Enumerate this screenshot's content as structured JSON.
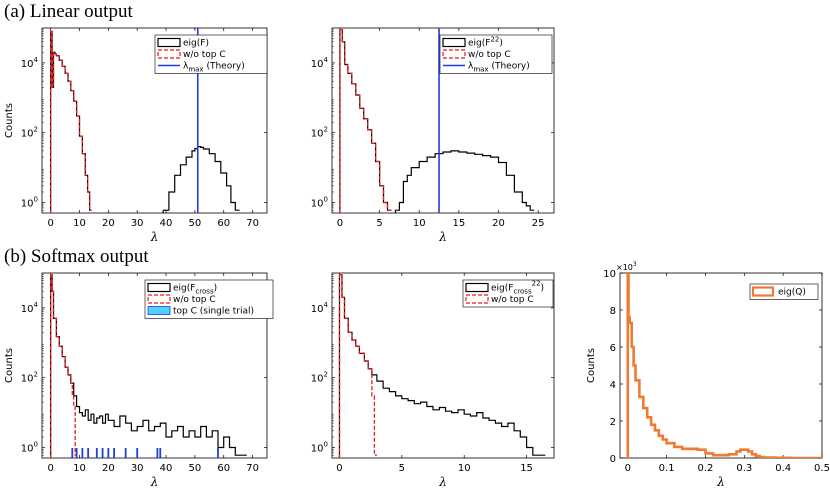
{
  "sections": {
    "a_title": "(a) Linear output",
    "b_title": "(b) Softmax output"
  },
  "colors": {
    "hist": "#000000",
    "red": "#e41a1c",
    "blue": "#1f3fd9",
    "cyan": "#4fd2ff",
    "orange": "#f07a32"
  },
  "chart_data": [
    {
      "id": "linear-eigF",
      "type": "histogram",
      "xlabel": "λ",
      "ylabel": "Counts",
      "yscale": "log",
      "xlim": [
        -3,
        75
      ],
      "ylim": [
        0.5,
        100000
      ],
      "xticks": [
        0,
        10,
        20,
        30,
        40,
        50,
        60,
        70
      ],
      "yticks": [
        {
          "v": 1,
          "base": "10",
          "exp": "0"
        },
        {
          "v": 100,
          "base": "10",
          "exp": "2"
        },
        {
          "v": 10000,
          "base": "10",
          "exp": "4"
        }
      ],
      "legend": [
        {
          "style": "box-black",
          "base": "eig(F)",
          "sub": "",
          "sup": "",
          "tail": ""
        },
        {
          "style": "dash-red",
          "base": "w/o top C",
          "sub": "",
          "sup": "",
          "tail": ""
        },
        {
          "style": "line-blue",
          "base": "λ",
          "sub": "max",
          "sup": "",
          "tail": " (Theory)"
        }
      ],
      "series": [
        {
          "name": "eig(F)",
          "style": "black",
          "x": [
            0,
            0.5,
            1,
            1.5,
            2,
            3,
            4,
            5,
            6,
            7,
            8,
            9,
            10,
            11,
            12,
            12.8,
            13.5
          ],
          "y": [
            80000,
            2000,
            20000,
            18000,
            16000,
            12000,
            8000,
            5000,
            3000,
            1600,
            800,
            300,
            80,
            25,
            6,
            2,
            0.6
          ]
        },
        {
          "name": "w/o top C",
          "style": "red-dash",
          "x": [
            0,
            0.5,
            1,
            1.5,
            2,
            3,
            4,
            5,
            6,
            7,
            8,
            9,
            10,
            11,
            12,
            12.8,
            13.5
          ],
          "y": [
            80000,
            2000,
            20000,
            18000,
            16000,
            12000,
            8000,
            5000,
            3000,
            1600,
            800,
            300,
            80,
            25,
            6,
            2,
            0.6
          ]
        },
        {
          "name": "eig(F) outliers",
          "style": "black",
          "x": [
            39,
            41,
            43,
            45,
            47,
            49,
            50,
            51,
            52,
            53,
            55,
            57,
            59,
            61,
            62.5,
            64
          ],
          "y": [
            0.6,
            2,
            6,
            12,
            20,
            30,
            35,
            40,
            38,
            34,
            25,
            15,
            7,
            3,
            1,
            0.6
          ]
        }
      ],
      "vline": {
        "x": 51,
        "style": "blue"
      }
    },
    {
      "id": "linear-eigF22",
      "type": "histogram",
      "xlabel": "λ",
      "ylabel": "",
      "yscale": "log",
      "xlim": [
        -1,
        27
      ],
      "ylim": [
        0.5,
        100000
      ],
      "xticks": [
        0,
        5,
        10,
        15,
        20,
        25
      ],
      "yticks": [
        {
          "v": 1,
          "base": "10",
          "exp": "0"
        },
        {
          "v": 100,
          "base": "10",
          "exp": "2"
        },
        {
          "v": 10000,
          "base": "10",
          "exp": "4"
        }
      ],
      "legend": [
        {
          "style": "box-black",
          "base": "eig(F",
          "sub": "",
          "sup": "22",
          "tail": ")"
        },
        {
          "style": "dash-red",
          "base": "w/o top C",
          "sub": "",
          "sup": "",
          "tail": ""
        },
        {
          "style": "line-blue",
          "base": "λ",
          "sub": "max",
          "sup": "",
          "tail": " (Theory)"
        }
      ],
      "series": [
        {
          "name": "eig(F^22)",
          "style": "black",
          "x": [
            0,
            0.3,
            0.6,
            1,
            1.5,
            2,
            2.5,
            3,
            3.5,
            4,
            4.5,
            5,
            5.5,
            6
          ],
          "y": [
            90000,
            40000,
            9000,
            5000,
            2500,
            1200,
            500,
            250,
            120,
            50,
            15,
            3,
            1,
            0.6
          ]
        },
        {
          "name": "w/o top C",
          "style": "red-dash",
          "x": [
            0,
            0.3,
            0.6,
            1,
            1.5,
            2,
            2.5,
            3,
            3.5,
            4,
            4.5,
            5,
            5.5,
            6
          ],
          "y": [
            90000,
            40000,
            9000,
            5000,
            2500,
            1200,
            500,
            250,
            120,
            50,
            15,
            3,
            1,
            0.6
          ]
        },
        {
          "name": "eig(F^22) outliers",
          "style": "black",
          "x": [
            7,
            7.5,
            8,
            8.5,
            9,
            10,
            11,
            12,
            13,
            14,
            15,
            16,
            17,
            18,
            19,
            20,
            21,
            22,
            23,
            23.5,
            24
          ],
          "y": [
            0.6,
            1,
            4,
            6,
            10,
            15,
            20,
            25,
            28,
            30,
            28,
            26,
            24,
            22,
            20,
            14,
            6,
            2,
            1,
            0.8,
            0.6
          ]
        }
      ],
      "vline": {
        "x": 12.5,
        "style": "blue"
      }
    },
    {
      "id": "softmax-eigFcross",
      "type": "histogram",
      "xlabel": "λ",
      "ylabel": "Counts",
      "yscale": "log",
      "xlim": [
        -3,
        75
      ],
      "ylim": [
        0.5,
        100000
      ],
      "xticks": [
        0,
        10,
        20,
        30,
        40,
        50,
        60,
        70
      ],
      "yticks": [
        {
          "v": 1,
          "base": "10",
          "exp": "0"
        },
        {
          "v": 100,
          "base": "10",
          "exp": "2"
        },
        {
          "v": 10000,
          "base": "10",
          "exp": "4"
        }
      ],
      "legend": [
        {
          "style": "box-black",
          "base": "eig(F",
          "sub": "cross",
          "sup": "",
          "tail": ")"
        },
        {
          "style": "dash-red",
          "base": "w/o top C",
          "sub": "",
          "sup": "",
          "tail": ""
        },
        {
          "style": "box-cyan",
          "base": "top C (single trial)",
          "sub": "",
          "sup": "",
          "tail": ""
        }
      ],
      "series": [
        {
          "name": "eig(F_cross)",
          "style": "black",
          "x": [
            0,
            0.5,
            1,
            2,
            3,
            4,
            5,
            6,
            7,
            8,
            9,
            10,
            11,
            12,
            13,
            14,
            15,
            16,
            17,
            18,
            19,
            20,
            22,
            24,
            26,
            28,
            30,
            32,
            34,
            36,
            38,
            40,
            42,
            44,
            46,
            48,
            50,
            52,
            54,
            56,
            58,
            60,
            62,
            64,
            66
          ],
          "y": [
            90000,
            30000,
            5000,
            1500,
            800,
            400,
            200,
            120,
            70,
            30,
            15,
            10,
            8,
            12,
            6,
            9,
            5,
            7,
            8,
            5,
            9,
            6,
            4,
            8,
            5,
            3,
            4,
            6,
            3,
            4,
            5,
            2,
            3,
            4,
            2,
            3,
            2,
            4,
            2,
            3,
            1,
            2,
            1,
            0.6,
            0.6
          ]
        },
        {
          "name": "w/o top C",
          "style": "red-dash",
          "x": [
            0,
            0.5,
            1,
            2,
            3,
            4,
            5,
            6,
            7,
            7.5,
            8,
            8.5
          ],
          "y": [
            90000,
            30000,
            5000,
            1500,
            800,
            400,
            200,
            120,
            70,
            30,
            15,
            0.6
          ]
        }
      ],
      "rug": {
        "style": "blue",
        "x": [
          7.5,
          9,
          11,
          13,
          16,
          18,
          20,
          22,
          26,
          30,
          37,
          38,
          58
        ]
      }
    },
    {
      "id": "softmax-eigF22cross",
      "type": "histogram",
      "xlabel": "λ",
      "ylabel": "",
      "yscale": "log",
      "xlim": [
        -0.6,
        17.2
      ],
      "ylim": [
        0.5,
        100000
      ],
      "xticks": [
        0,
        5,
        10,
        15
      ],
      "yticks": [
        {
          "v": 1,
          "base": "10",
          "exp": "0"
        },
        {
          "v": 100,
          "base": "10",
          "exp": "2"
        },
        {
          "v": 10000,
          "base": "10",
          "exp": "4"
        }
      ],
      "legend": [
        {
          "style": "box-black",
          "base": "eig(F",
          "sub": "cross",
          "sup": "22",
          "tail": ")"
        },
        {
          "style": "dash-red",
          "base": "w/o top C",
          "sub": "",
          "sup": "",
          "tail": ""
        }
      ],
      "series": [
        {
          "name": "eig(F^22_cross)",
          "style": "black",
          "x": [
            0,
            0.2,
            0.4,
            0.7,
            1,
            1.3,
            1.6,
            2,
            2.3,
            2.6,
            3,
            3.5,
            4,
            4.5,
            5,
            5.5,
            6,
            6.5,
            7,
            7.5,
            8,
            8.5,
            9,
            9.5,
            10,
            10.5,
            11,
            11.5,
            12,
            12.5,
            13,
            13.5,
            14,
            14.5,
            15,
            15.5,
            16
          ],
          "y": [
            90000,
            20000,
            5000,
            2000,
            1200,
            800,
            500,
            300,
            180,
            120,
            80,
            50,
            40,
            30,
            25,
            22,
            18,
            20,
            15,
            12,
            14,
            11,
            10,
            12,
            9,
            8,
            10,
            7,
            6,
            5,
            4,
            5,
            3,
            2,
            1,
            0.6,
            0.6
          ]
        },
        {
          "name": "w/o top C",
          "style": "red-dash",
          "x": [
            0,
            0.2,
            0.4,
            0.7,
            1,
            1.3,
            1.6,
            2,
            2.3,
            2.6,
            2.8
          ],
          "y": [
            90000,
            20000,
            5000,
            2000,
            1200,
            800,
            500,
            300,
            180,
            30,
            0.6
          ]
        }
      ]
    },
    {
      "id": "softmax-eigQ",
      "type": "histogram",
      "xlabel": "λ",
      "ylabel": "Counts",
      "yscale": "linear",
      "xlim": [
        -0.02,
        0.5
      ],
      "ylim": [
        0,
        10
      ],
      "xticks": [
        0,
        0.1,
        0.2,
        0.3,
        0.4,
        0.5
      ],
      "xticklabels": [
        "0",
        "0.1",
        "0.2",
        "0.3",
        "0.4",
        "0.5"
      ],
      "yticks": [
        {
          "v": 0,
          "label": "0"
        },
        {
          "v": 2,
          "label": "2"
        },
        {
          "v": 4,
          "label": "4"
        },
        {
          "v": 6,
          "label": "6"
        },
        {
          "v": 8,
          "label": "8"
        },
        {
          "v": 10,
          "label": "10"
        }
      ],
      "multiplier": {
        "base": "×10",
        "exp": "3"
      },
      "legend": [
        {
          "style": "box-orange",
          "base": "eig(Q)",
          "sub": "",
          "sup": "",
          "tail": ""
        }
      ],
      "series": [
        {
          "name": "eig(Q)",
          "style": "orange",
          "x": [
            0,
            0.002,
            0.005,
            0.01,
            0.015,
            0.02,
            0.03,
            0.04,
            0.05,
            0.06,
            0.07,
            0.08,
            0.09,
            0.1,
            0.12,
            0.14,
            0.16,
            0.18,
            0.2,
            0.22,
            0.24,
            0.26,
            0.28,
            0.29,
            0.3,
            0.31,
            0.32,
            0.33,
            0.34,
            0.35,
            0.38,
            0.42,
            0.46,
            0.48
          ],
          "y": [
            10,
            7.6,
            7.3,
            6,
            5,
            4.2,
            3.3,
            2.7,
            2.2,
            1.8,
            1.5,
            1.2,
            1.0,
            0.8,
            0.6,
            0.5,
            0.5,
            0.45,
            0.25,
            0.15,
            0.15,
            0.2,
            0.35,
            0.45,
            0.45,
            0.35,
            0.2,
            0.1,
            0.05,
            0.02,
            0.01,
            0.0,
            0.0,
            0.0
          ]
        }
      ]
    }
  ]
}
